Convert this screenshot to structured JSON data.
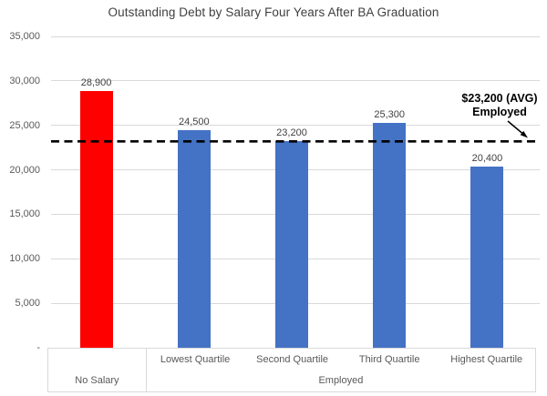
{
  "chart_data": {
    "type": "bar",
    "title": "Outstanding Debt by Salary Four Years After BA Graduation",
    "categories": [
      "No Salary",
      "Lowest Quartile",
      "Second Quartile",
      "Third Quartile",
      "Highest Quartile"
    ],
    "values": [
      28900,
      24500,
      23200,
      25300,
      20400
    ],
    "value_labels": [
      "28,900",
      "24,500",
      "23,200",
      "25,300",
      "20,400"
    ],
    "bar_colors": [
      "#FF0000",
      "#4472C4",
      "#4472C4",
      "#4472C4",
      "#4472C4"
    ],
    "axis_group_row": {
      "group_labels": [
        "No Salary",
        "Employed"
      ],
      "employed_sub_labels": [
        "Lowest Quartile",
        "Second Quartile",
        "Third Quartile",
        "Highest Quartile"
      ]
    },
    "xlabel": "",
    "ylabel": "",
    "ylim": [
      0,
      35000
    ],
    "ytick_values": [
      0,
      5000,
      10000,
      15000,
      20000,
      25000,
      30000,
      35000
    ],
    "ytick_labels": [
      "-",
      "5,000",
      "10,000",
      "15,000",
      "20,000",
      "25,000",
      "30,000",
      "35,000"
    ],
    "grid": true,
    "legend": "none",
    "avg_line": {
      "value": 23200,
      "style": "dashed",
      "color": "#000000",
      "label_line1": "$23,200 (AVG)",
      "label_line2": "Employed"
    }
  },
  "colors": {
    "bar_red": "#FF0000",
    "bar_blue": "#4472C4",
    "gridline": "#D9D9D9",
    "axis_text": "#595959",
    "label_text": "#404040",
    "annotation_text": "#000000"
  }
}
